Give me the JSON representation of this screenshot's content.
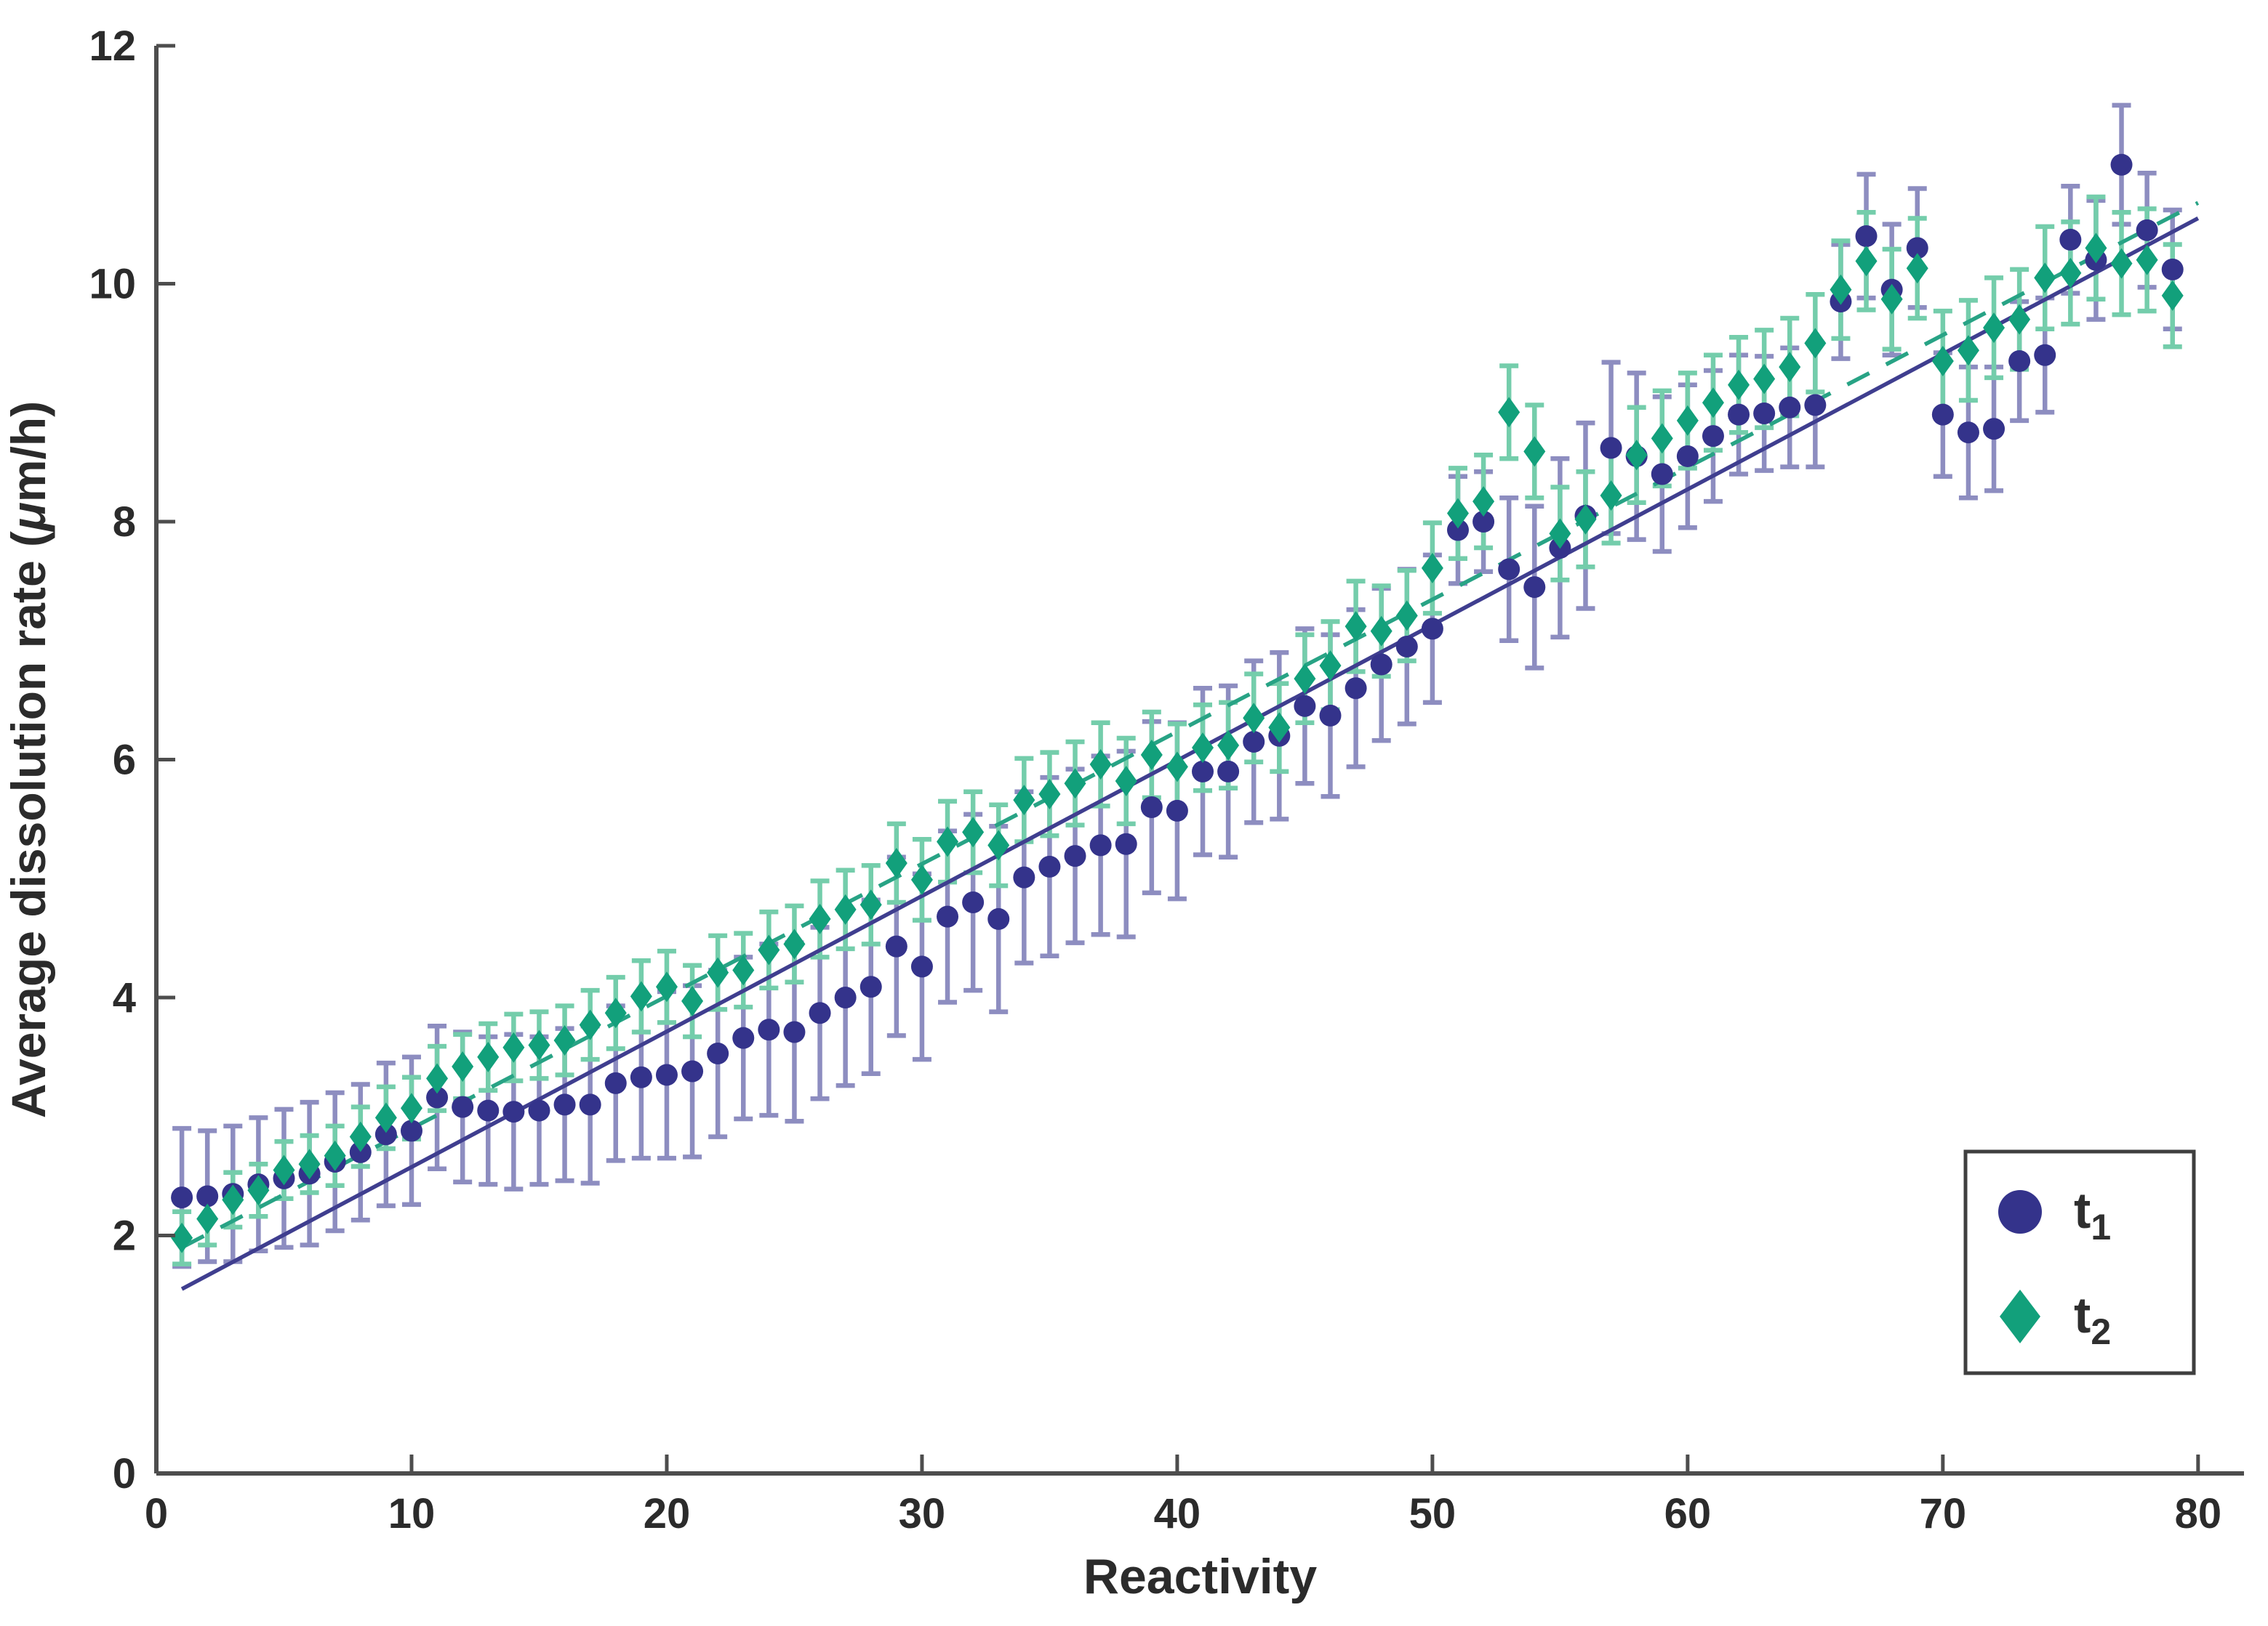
{
  "figure_title": "",
  "chart_data": {
    "type": "scatter",
    "title": "",
    "xlabel": "Reactivity",
    "ylabel_prefix": "Average dissolution rate (",
    "ylabel_mu": "μ",
    "ylabel_suffix": "m/h)",
    "xlim": [
      0,
      81.8
    ],
    "ylim": [
      0,
      12
    ],
    "x_ticks": [
      0,
      10,
      20,
      30,
      40,
      50,
      60,
      70,
      80
    ],
    "y_ticks": [
      0,
      2,
      4,
      6,
      8,
      10,
      12
    ],
    "grid": false,
    "legend_position": "lower-right",
    "axis_color": "#4d4d4d",
    "text_color": "#2b2b2b",
    "x": [
      1,
      2,
      3,
      4,
      5,
      6,
      7,
      8,
      9,
      10,
      11,
      12,
      13,
      14,
      15,
      16,
      17,
      18,
      19,
      20,
      21,
      22,
      23,
      24,
      25,
      26,
      27,
      28,
      29,
      30,
      31,
      32,
      33,
      34,
      35,
      36,
      37,
      38,
      39,
      40,
      41,
      42,
      43,
      44,
      45,
      46,
      47,
      48,
      49,
      50,
      51,
      52,
      53,
      54,
      55,
      56,
      57,
      58,
      59,
      60,
      61,
      62,
      63,
      64,
      65,
      66,
      67,
      68,
      69,
      70,
      71,
      72,
      73,
      74,
      75,
      76,
      77,
      78,
      79
    ],
    "series": [
      {
        "name": "t1",
        "label_base": "t",
        "label_sub": "1",
        "marker": "circle",
        "marker_color": "#34338b",
        "errorbar_color": "#8d8dc0",
        "values": [
          2.32,
          2.33,
          2.35,
          2.43,
          2.48,
          2.52,
          2.62,
          2.7,
          2.85,
          2.88,
          3.16,
          3.08,
          3.05,
          3.04,
          3.05,
          3.1,
          3.1,
          3.28,
          3.33,
          3.35,
          3.38,
          3.53,
          3.66,
          3.73,
          3.71,
          3.87,
          4.0,
          4.09,
          4.43,
          4.26,
          4.68,
          4.8,
          4.66,
          5.01,
          5.1,
          5.19,
          5.28,
          5.29,
          5.6,
          5.57,
          5.9,
          5.9,
          6.15,
          6.2,
          6.45,
          6.37,
          6.6,
          6.8,
          6.95,
          7.1,
          7.93,
          8.0,
          7.6,
          7.45,
          7.78,
          8.05,
          8.62,
          8.55,
          8.4,
          8.55,
          8.72,
          8.9,
          8.91,
          8.96,
          8.98,
          9.85,
          10.4,
          9.95,
          10.3,
          8.9,
          8.75,
          8.78,
          9.35,
          9.4,
          10.37,
          10.2,
          11.0,
          10.45,
          10.12
        ],
        "errors": [
          0.58,
          0.55,
          0.57,
          0.56,
          0.58,
          0.6,
          0.58,
          0.57,
          0.6,
          0.62,
          0.6,
          0.63,
          0.62,
          0.65,
          0.62,
          0.64,
          0.66,
          0.65,
          0.68,
          0.7,
          0.72,
          0.7,
          0.68,
          0.72,
          0.75,
          0.72,
          0.74,
          0.73,
          0.75,
          0.78,
          0.72,
          0.74,
          0.78,
          0.72,
          0.75,
          0.73,
          0.75,
          0.78,
          0.72,
          0.74,
          0.7,
          0.72,
          0.68,
          0.7,
          0.65,
          0.68,
          0.66,
          0.64,
          0.65,
          0.62,
          0.45,
          0.42,
          0.6,
          0.68,
          0.75,
          0.78,
          0.72,
          0.7,
          0.65,
          0.6,
          0.55,
          0.5,
          0.48,
          0.5,
          0.52,
          0.48,
          0.52,
          0.55,
          0.5,
          0.52,
          0.55,
          0.52,
          0.5,
          0.48,
          0.45,
          0.5,
          0.5,
          0.48,
          0.5
        ],
        "fit_line": {
          "style": "solid",
          "color": "#3f3e8f",
          "x": [
            1,
            80
          ],
          "y": [
            1.55,
            10.55
          ]
        }
      },
      {
        "name": "t2",
        "label_base": "t",
        "label_sub": "2",
        "marker": "diamond",
        "marker_color": "#12a07b",
        "errorbar_color": "#74cdab",
        "values": [
          1.98,
          2.14,
          2.3,
          2.38,
          2.55,
          2.6,
          2.67,
          2.83,
          2.99,
          3.07,
          3.32,
          3.42,
          3.5,
          3.58,
          3.6,
          3.64,
          3.77,
          3.87,
          4.01,
          4.09,
          3.97,
          4.21,
          4.23,
          4.4,
          4.45,
          4.66,
          4.74,
          4.78,
          5.13,
          4.99,
          5.31,
          5.39,
          5.28,
          5.66,
          5.71,
          5.8,
          5.96,
          5.82,
          6.04,
          5.94,
          6.1,
          6.12,
          6.35,
          6.27,
          6.68,
          6.79,
          7.12,
          7.08,
          7.21,
          7.61,
          8.07,
          8.17,
          8.92,
          8.59,
          7.9,
          8.02,
          8.22,
          8.56,
          8.7,
          8.85,
          9.0,
          9.15,
          9.2,
          9.3,
          9.5,
          9.95,
          10.19,
          9.87,
          10.13,
          9.35,
          9.44,
          9.63,
          9.7,
          10.05,
          10.09,
          10.3,
          10.17,
          10.2,
          9.9
        ],
        "errors": [
          0.22,
          0.22,
          0.23,
          0.22,
          0.24,
          0.24,
          0.25,
          0.25,
          0.26,
          0.26,
          0.27,
          0.27,
          0.28,
          0.28,
          0.28,
          0.29,
          0.29,
          0.3,
          0.3,
          0.3,
          0.3,
          0.31,
          0.31,
          0.32,
          0.32,
          0.32,
          0.33,
          0.33,
          0.33,
          0.34,
          0.34,
          0.34,
          0.34,
          0.35,
          0.35,
          0.35,
          0.35,
          0.36,
          0.36,
          0.36,
          0.36,
          0.36,
          0.37,
          0.37,
          0.37,
          0.37,
          0.38,
          0.38,
          0.38,
          0.38,
          0.38,
          0.39,
          0.39,
          0.39,
          0.39,
          0.4,
          0.4,
          0.4,
          0.4,
          0.4,
          0.4,
          0.4,
          0.41,
          0.41,
          0.41,
          0.41,
          0.41,
          0.42,
          0.42,
          0.42,
          0.42,
          0.42,
          0.42,
          0.43,
          0.43,
          0.43,
          0.43,
          0.43,
          0.43
        ],
        "fit_line": {
          "style": "dashed",
          "color": "#28a385",
          "x": [
            1,
            80
          ],
          "y": [
            1.9,
            10.68
          ]
        }
      }
    ],
    "legend": {
      "entries": [
        {
          "series": "t1",
          "marker": "circle",
          "color": "#34338b",
          "label_base": "t",
          "label_sub": "1"
        },
        {
          "series": "t2",
          "marker": "diamond",
          "color": "#12a07b",
          "label_base": "t",
          "label_sub": "2"
        }
      ],
      "border_color": "#3f3f3f",
      "background": "#ffffff"
    }
  }
}
